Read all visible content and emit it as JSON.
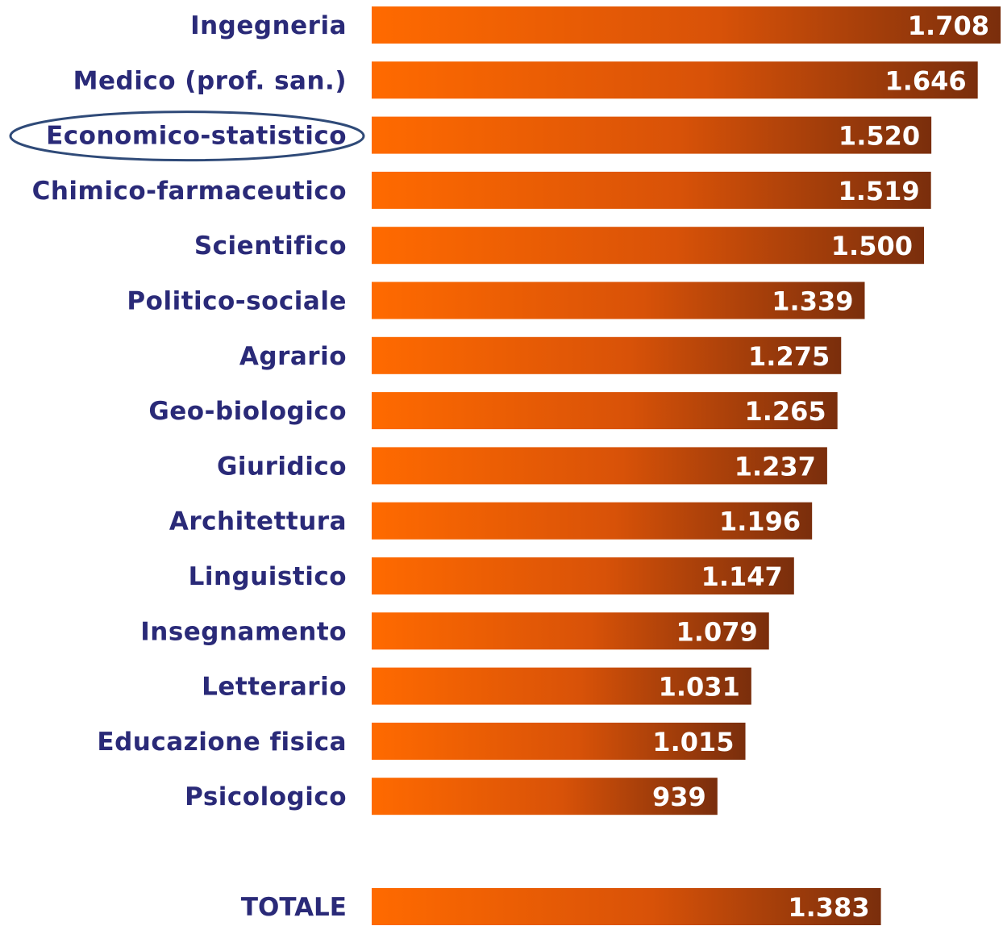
{
  "chart_data": {
    "type": "bar",
    "orientation": "horizontal",
    "categories": [
      "Ingegneria",
      "Medico (prof. san.)",
      "Economico-statistico",
      "Chimico-farmaceutico",
      "Scientifico",
      "Politico-sociale",
      "Agrario",
      "Geo-biologico",
      "Giuridico",
      "Architettura",
      "Linguistico",
      "Insegnamento",
      "Letterario",
      "Educazione fisica",
      "Psicologico"
    ],
    "values": [
      1708,
      1646,
      1520,
      1519,
      1500,
      1339,
      1275,
      1265,
      1237,
      1196,
      1147,
      1079,
      1031,
      1015,
      939
    ],
    "value_labels": [
      "1.708",
      "1.646",
      "1.520",
      "1.519",
      "1.500",
      "1.339",
      "1.275",
      "1.265",
      "1.237",
      "1.196",
      "1.147",
      "1.079",
      "1.031",
      "1.015",
      "939"
    ],
    "highlighted_category": "Economico-statistico",
    "total": {
      "label": "TOTALE",
      "value": 1383,
      "value_label": "1.383"
    },
    "title": "",
    "xlabel": "",
    "ylabel": "",
    "grid": false,
    "legend": "none"
  },
  "colors": {
    "bar_start": "#ff6a00",
    "bar_end": "#7a2e0c",
    "category_text": "#2a2a78",
    "value_text": "#ffffff",
    "highlight_ellipse": "#2f4a78"
  }
}
